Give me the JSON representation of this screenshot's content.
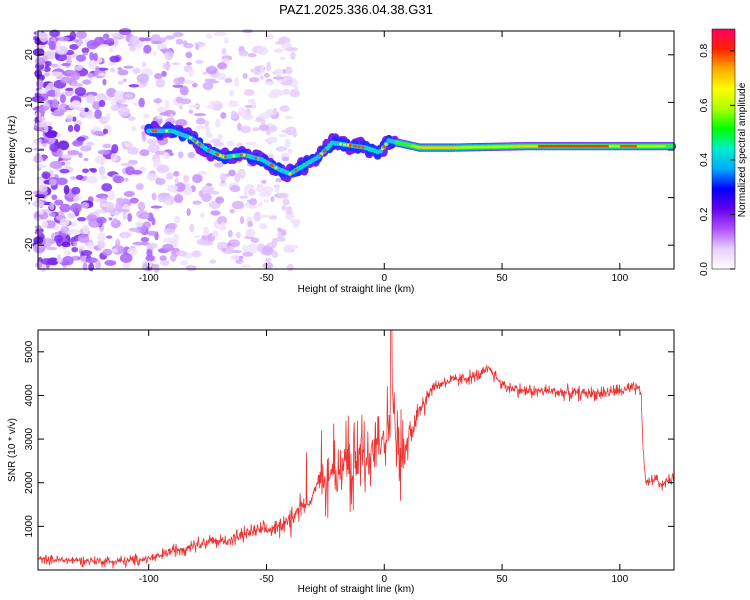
{
  "title": "PAZ1.2025.336.04.38.G31",
  "spectrogram": {
    "type": "heatmap",
    "xlabel": "Height of straight line (km)",
    "ylabel": "Frequency (Hz)",
    "xlim": [
      -147,
      123
    ],
    "ylim": [
      -25,
      25
    ],
    "xticks": [
      "-100",
      "-50",
      "0",
      "50",
      "100"
    ],
    "xtick_values": [
      -100,
      -50,
      0,
      50,
      100
    ],
    "yticks": [
      "20",
      "10",
      "0",
      "-10",
      "-20"
    ],
    "ytick_values": [
      20,
      10,
      0,
      -10,
      -20
    ],
    "ridge": {
      "x": [
        -100,
        -90,
        -82,
        -75,
        -68,
        -60,
        -52,
        -45,
        -40,
        -35,
        -28,
        -22,
        -15,
        -8,
        -2,
        2,
        6,
        15,
        30,
        60,
        90,
        123
      ],
      "y": [
        4,
        4,
        2.5,
        0,
        -1.5,
        -1,
        -2,
        -4,
        -5,
        -3.5,
        -1.5,
        1.5,
        1,
        0.5,
        -0.5,
        2,
        1.5,
        0.5,
        0.5,
        0.8,
        0.8,
        0.8
      ]
    }
  },
  "colorbar": {
    "label": "Normalized spectral amplitude",
    "ticks": [
      "0.0",
      "0.2",
      "0.4",
      "0.6",
      "0.8"
    ],
    "tick_values": [
      0,
      0.2,
      0.4,
      0.6,
      0.8
    ],
    "range": [
      0,
      0.88
    ],
    "colors": [
      "#ffffff",
      "#e8d0ff",
      "#b050ff",
      "#6600ee",
      "#0000ff",
      "#00aaff",
      "#00eecc",
      "#00ff00",
      "#aaff00",
      "#ffff00",
      "#ffaa00",
      "#ff2200",
      "#ff0066"
    ]
  },
  "chart_data": {
    "type": "line",
    "title": "",
    "xlabel": "Height of straight line (km)",
    "ylabel": "SNR (10 * v/v)",
    "xlim": [
      -147,
      123
    ],
    "ylim": [
      0,
      5500
    ],
    "xticks": [
      "-100",
      "-50",
      "0",
      "50",
      "100"
    ],
    "xtick_values": [
      -100,
      -50,
      0,
      50,
      100
    ],
    "yticks": [
      "5000",
      "4000",
      "3000",
      "2000",
      "1000"
    ],
    "ytick_values": [
      5000,
      4000,
      3000,
      2000,
      1000
    ],
    "color": "#ee3333",
    "series": [
      {
        "name": "SNR",
        "x": [
          -147,
          -140,
          -130,
          -120,
          -110,
          -100,
          -95,
          -90,
          -85,
          -80,
          -75,
          -70,
          -65,
          -60,
          -55,
          -50,
          -45,
          -40,
          -37,
          -35,
          -32,
          -30,
          -28,
          -25,
          -22,
          -20,
          -18,
          -16,
          -15,
          -14,
          -12,
          -10,
          -8,
          -6,
          -4,
          -2,
          0,
          2,
          3,
          4,
          5,
          6,
          8,
          10,
          12,
          14,
          16,
          18,
          20,
          25,
          30,
          35,
          40,
          45,
          47,
          50,
          55,
          60,
          70,
          80,
          90,
          100,
          106,
          108,
          109,
          110,
          111,
          112,
          115,
          118,
          120,
          123
        ],
        "y": [
          250,
          230,
          220,
          200,
          200,
          260,
          320,
          450,
          500,
          600,
          650,
          650,
          700,
          800,
          900,
          900,
          1000,
          1200,
          1400,
          1500,
          1500,
          1800,
          2000,
          2000,
          2200,
          2200,
          2500,
          2600,
          2200,
          2100,
          2500,
          2800,
          2400,
          2700,
          3100,
          3000,
          3150,
          3300,
          3500,
          3600,
          3100,
          2600,
          2700,
          3000,
          3300,
          3500,
          3800,
          4000,
          4150,
          4300,
          4350,
          4400,
          4450,
          4600,
          4450,
          4250,
          4150,
          4100,
          4100,
          4050,
          4050,
          4100,
          4150,
          4150,
          4100,
          2600,
          2050,
          2000,
          2100,
          1950,
          2050,
          2050
        ]
      }
    ]
  }
}
